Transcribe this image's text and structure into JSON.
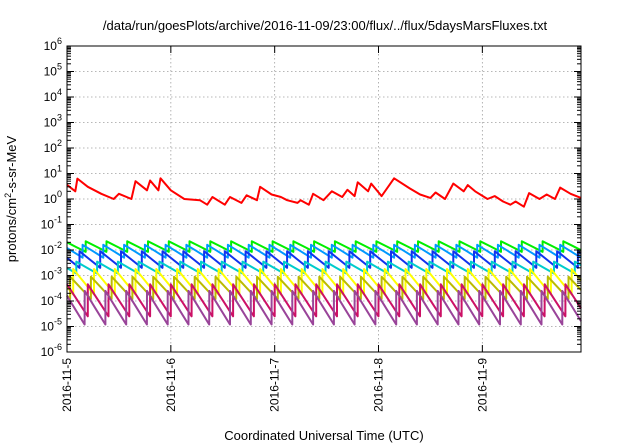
{
  "chart_data": {
    "type": "line",
    "title": "/data/run/goesPlots/archive/2016-11-09/23:00/flux/../flux/5daysMarsFluxes.txt",
    "xlabel": "Coordinated Universal Time (UTC)",
    "ylabel": "protons/cm2-s-sr-MeV",
    "ylabel_parts": {
      "base": "protons/cm",
      "sup": "2",
      "rest": "-s-sr-MeV"
    },
    "x_range_days": [
      0,
      4.95
    ],
    "x_ticks": [
      {
        "label": "2016-11-5",
        "day": 0
      },
      {
        "label": "2016-11-6",
        "day": 1
      },
      {
        "label": "2016-11-7",
        "day": 2
      },
      {
        "label": "2016-11-8",
        "day": 3
      },
      {
        "label": "2016-11-9",
        "day": 4
      }
    ],
    "y_scale": "log",
    "y_range_exponents": [
      -6,
      6
    ],
    "y_tick_exponents": [
      -6,
      -5,
      -4,
      -3,
      -2,
      -1,
      0,
      1,
      2,
      3,
      4,
      5,
      6
    ],
    "grid": true,
    "legend": "none",
    "series": [
      {
        "color": "#ff0000",
        "points": [
          [
            0.0,
            3.6
          ],
          [
            0.08,
            2.0
          ],
          [
            0.1,
            6.3
          ],
          [
            0.2,
            3.0
          ],
          [
            0.33,
            1.6
          ],
          [
            0.45,
            1.0
          ],
          [
            0.5,
            1.6
          ],
          [
            0.62,
            1.0
          ],
          [
            0.66,
            5.0
          ],
          [
            0.77,
            2.2
          ],
          [
            0.8,
            5.3
          ],
          [
            0.88,
            2.2
          ],
          [
            0.9,
            6.5
          ],
          [
            1.0,
            2.2
          ],
          [
            1.13,
            1.0
          ],
          [
            1.28,
            0.9
          ],
          [
            1.35,
            0.6
          ],
          [
            1.4,
            1.2
          ],
          [
            1.52,
            0.6
          ],
          [
            1.57,
            1.2
          ],
          [
            1.68,
            0.7
          ],
          [
            1.73,
            1.4
          ],
          [
            1.83,
            0.9
          ],
          [
            1.86,
            3.0
          ],
          [
            1.97,
            1.5
          ],
          [
            2.06,
            1.2
          ],
          [
            2.12,
            0.9
          ],
          [
            2.22,
            0.7
          ],
          [
            2.25,
            0.9
          ],
          [
            2.33,
            0.6
          ],
          [
            2.37,
            1.6
          ],
          [
            2.47,
            0.9
          ],
          [
            2.55,
            2.0
          ],
          [
            2.65,
            1.2
          ],
          [
            2.7,
            2.3
          ],
          [
            2.77,
            1.3
          ],
          [
            2.8,
            4.5
          ],
          [
            2.9,
            2.0
          ],
          [
            2.93,
            4.0
          ],
          [
            3.03,
            1.3
          ],
          [
            3.15,
            6.5
          ],
          [
            3.3,
            2.6
          ],
          [
            3.4,
            1.5
          ],
          [
            3.5,
            1.1
          ],
          [
            3.55,
            1.8
          ],
          [
            3.64,
            1.0
          ],
          [
            3.72,
            4.0
          ],
          [
            3.82,
            2.0
          ],
          [
            3.86,
            3.5
          ],
          [
            3.93,
            2.0
          ],
          [
            4.05,
            1.0
          ],
          [
            4.12,
            1.3
          ],
          [
            4.2,
            0.8
          ],
          [
            4.27,
            0.6
          ],
          [
            4.32,
            0.8
          ],
          [
            4.4,
            0.5
          ],
          [
            4.45,
            1.7
          ],
          [
            4.55,
            1.0
          ],
          [
            4.62,
            1.5
          ],
          [
            4.7,
            1.0
          ],
          [
            4.75,
            2.8
          ],
          [
            4.85,
            1.6
          ],
          [
            4.95,
            1.1
          ]
        ]
      },
      {
        "color": "#00ee00",
        "top": 0.022,
        "bottom": 0.0085,
        "period": 0.2,
        "phase": 0.02
      },
      {
        "color": "#0099ff",
        "top": 0.016,
        "bottom": 0.005,
        "period": 0.2,
        "phase": 0.05
      },
      {
        "color": "#1133ee",
        "top": 0.009,
        "bottom": 0.002,
        "period": 0.2,
        "phase": 0.08
      },
      {
        "color": "#00cccc",
        "top": 0.0035,
        "bottom": 0.0012,
        "period": 0.2,
        "phase": 0.11
      },
      {
        "color": "#ffff00",
        "top": 0.0018,
        "bottom": 0.00018,
        "period": 0.2,
        "phase": 0.14
      },
      {
        "color": "#bbbb00",
        "top": 0.0009,
        "bottom": 0.00012,
        "period": 0.2,
        "phase": 0.17
      },
      {
        "color": "#cc1166",
        "top": 0.00045,
        "bottom": 2.5e-05,
        "period": 0.2,
        "phase": 0.0
      },
      {
        "color": "#994499",
        "top": 0.00025,
        "bottom": 1.2e-05,
        "period": 0.2,
        "phase": 0.03
      }
    ]
  }
}
